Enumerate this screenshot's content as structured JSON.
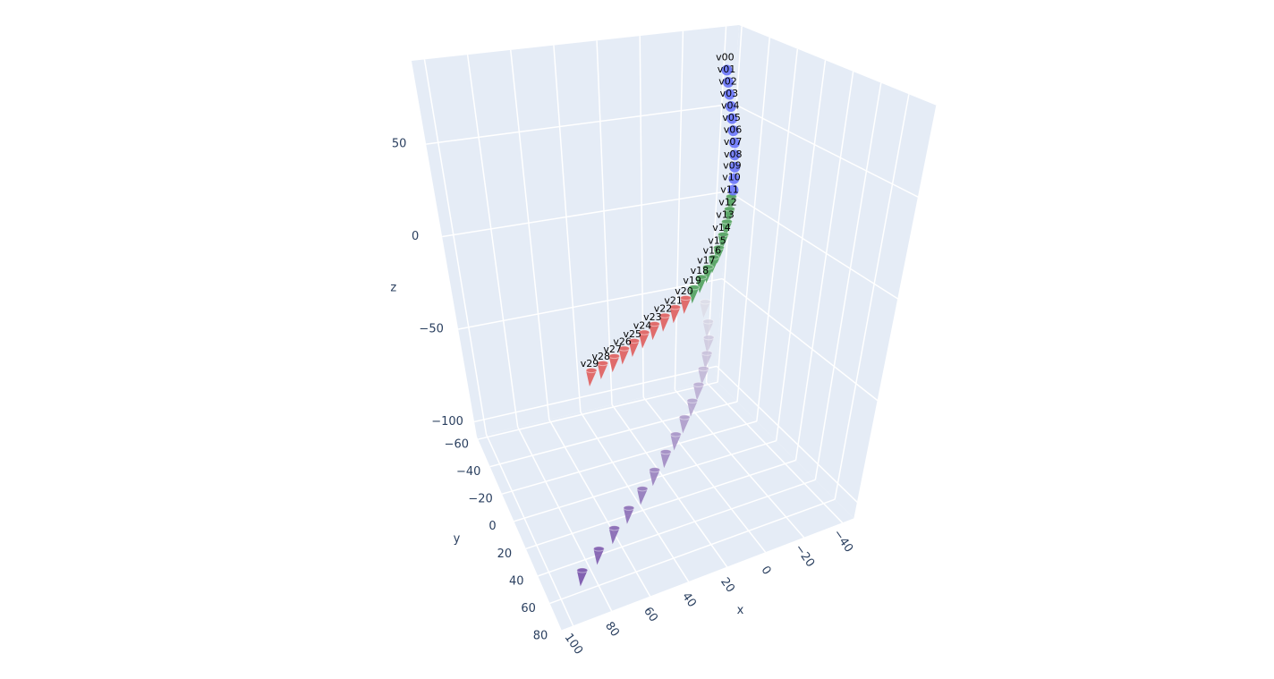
{
  "chart_data": {
    "type": "scatter3d",
    "xlim": [
      -46,
      106
    ],
    "ylim": [
      -62,
      80
    ],
    "zlim": [
      -108,
      95
    ],
    "xticks": [
      {
        "value": -40,
        "label": "−40"
      },
      {
        "value": -20,
        "label": "−20"
      },
      0,
      20,
      40,
      60,
      80,
      100
    ],
    "yticks": [
      {
        "value": -60,
        "label": "−60"
      },
      {
        "value": -40,
        "label": "−40"
      },
      {
        "value": -20,
        "label": "−20"
      },
      0,
      20,
      40,
      60,
      80
    ],
    "zticks": [
      {
        "value": -100,
        "label": "−100"
      },
      {
        "value": -50,
        "label": "−50"
      },
      0,
      50
    ],
    "xlabel": "x",
    "ylabel": "y",
    "zlabel": "z",
    "bgcolor": "#e5ecf6",
    "gridcolor": "#ffffff",
    "series": [
      {
        "marker": "cone",
        "colorscale": [
          "#dcdbe6",
          "#6a3fa0"
        ],
        "opacity": 0.8,
        "x": [
          -28,
          -26.0,
          -22.4,
          -17.6,
          -12.0,
          -5.7,
          1.3,
          9.0,
          17.2,
          25.9,
          35.1,
          44.8,
          55.0,
          65.6,
          76.6,
          88
        ],
        "y": [
          -48,
          -40.9,
          -33.7,
          -26.6,
          -19.5,
          -12.3,
          -5.2,
          1.9,
          9.1,
          16.2,
          23.3,
          30.5,
          37.6,
          44.7,
          51.9,
          59
        ],
        "z": [
          -56,
          -62.9,
          -67.2,
          -70.9,
          -74.2,
          -77.3,
          -80.2,
          -83.0,
          -85.6,
          -88.2,
          -90.6,
          -93.0,
          -95.3,
          -97.6,
          -99.8,
          -102
        ]
      },
      {
        "marker": "cone",
        "color": "#5ea86b",
        "text": [
          "v11",
          "v12",
          "v13",
          "v14",
          "v15",
          "v16",
          "v17",
          "v18",
          "v19"
        ],
        "x": [
          -43.5,
          -43,
          -42,
          -40.5,
          -38.5,
          -36,
          -33,
          -29.5,
          -25.5
        ],
        "y": [
          -55,
          -55,
          -55,
          -55,
          -55,
          -55,
          -55,
          -55,
          -55
        ],
        "z": [
          -3,
          -10,
          -17,
          -24,
          -31,
          -36,
          -41,
          -46,
          -51
        ]
      },
      {
        "marker": "cone",
        "color": "#e06c6c",
        "text": [
          "v20",
          "v21",
          "v22",
          "v23",
          "v24",
          "v25",
          "v26",
          "v27",
          "v28",
          "v29"
        ],
        "x": [
          -21,
          -15,
          -9,
          -3,
          3,
          9,
          15,
          21,
          28,
          35
        ],
        "y": [
          -55,
          -55,
          -55,
          -55,
          -55,
          -55,
          -55,
          -55,
          -55,
          -55
        ],
        "z": [
          -56,
          -60,
          -63.5,
          -67,
          -70.5,
          -74,
          -77,
          -80,
          -82.5,
          -85
        ]
      },
      {
        "marker": "sphere",
        "color": "#636efa",
        "text": [
          "v00",
          "v01",
          "v02",
          "v03",
          "v04",
          "v05",
          "v06",
          "v07",
          "v08",
          "v09",
          "v10"
        ],
        "x": [
          -37,
          -38,
          -39,
          -40,
          -41,
          -42,
          -43,
          -43.5,
          -44,
          -44,
          -44
        ],
        "y": [
          -55,
          -55,
          -55,
          -55,
          -55,
          -55,
          -55,
          -55,
          -55,
          -55,
          -55
        ],
        "z": [
          73,
          66,
          59,
          52,
          45,
          38,
          31,
          24,
          17,
          10.5,
          4
        ]
      }
    ]
  }
}
